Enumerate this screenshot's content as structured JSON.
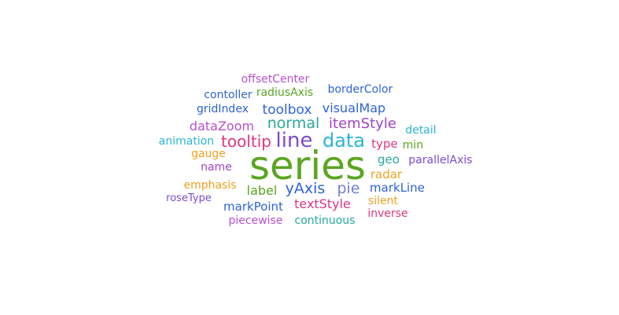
{
  "chart_data": {
    "type": "wordcloud",
    "words": [
      {
        "text": "series",
        "color": "#5aa620"
      },
      {
        "text": "line",
        "color": "#7b4bd1"
      },
      {
        "text": "data",
        "color": "#2ab4d8"
      },
      {
        "text": "normal",
        "color": "#2ca89b"
      },
      {
        "text": "tooltip",
        "color": "#e0367e"
      },
      {
        "text": "yAxis",
        "color": "#2e63d6"
      },
      {
        "text": "pie",
        "color": "#6f7fd7"
      },
      {
        "text": "itemStyle",
        "color": "#9f45c7"
      },
      {
        "text": "toolbox",
        "color": "#2e63d6"
      },
      {
        "text": "visualMap",
        "color": "#2e63d6"
      },
      {
        "text": "dataZoom",
        "color": "#b651cf"
      },
      {
        "text": "label",
        "color": "#5aa620"
      },
      {
        "text": "textStyle",
        "color": "#e0367e"
      },
      {
        "text": "markPoint",
        "color": "#2e63d6"
      },
      {
        "text": "type",
        "color": "#e0367e"
      },
      {
        "text": "markLine",
        "color": "#2e63d6"
      },
      {
        "text": "geo",
        "color": "#26a8a0"
      },
      {
        "text": "radar",
        "color": "#f2a01e"
      },
      {
        "text": "emphasis",
        "color": "#f2a01e"
      },
      {
        "text": "gridIndex",
        "color": "#2e63d6"
      },
      {
        "text": "contoller",
        "color": "#2e63d6"
      },
      {
        "text": "radiusAxis",
        "color": "#5aa620"
      },
      {
        "text": "borderColor",
        "color": "#2e63d6"
      },
      {
        "text": "offsetCenter",
        "color": "#b651cf"
      },
      {
        "text": "animation",
        "color": "#2ab4d8"
      },
      {
        "text": "gauge",
        "color": "#f2a01e"
      },
      {
        "text": "name",
        "color": "#9f45c7"
      },
      {
        "text": "parallelAxis",
        "color": "#7b4bd1"
      },
      {
        "text": "detail",
        "color": "#2ab4d8"
      },
      {
        "text": "min",
        "color": "#5aa620"
      },
      {
        "text": "roseType",
        "color": "#7b4bd1"
      },
      {
        "text": "silent",
        "color": "#f2a01e"
      },
      {
        "text": "inverse",
        "color": "#e0367e"
      },
      {
        "text": "piecewise",
        "color": "#b651cf"
      },
      {
        "text": "continuous",
        "color": "#26a8a0"
      }
    ]
  }
}
